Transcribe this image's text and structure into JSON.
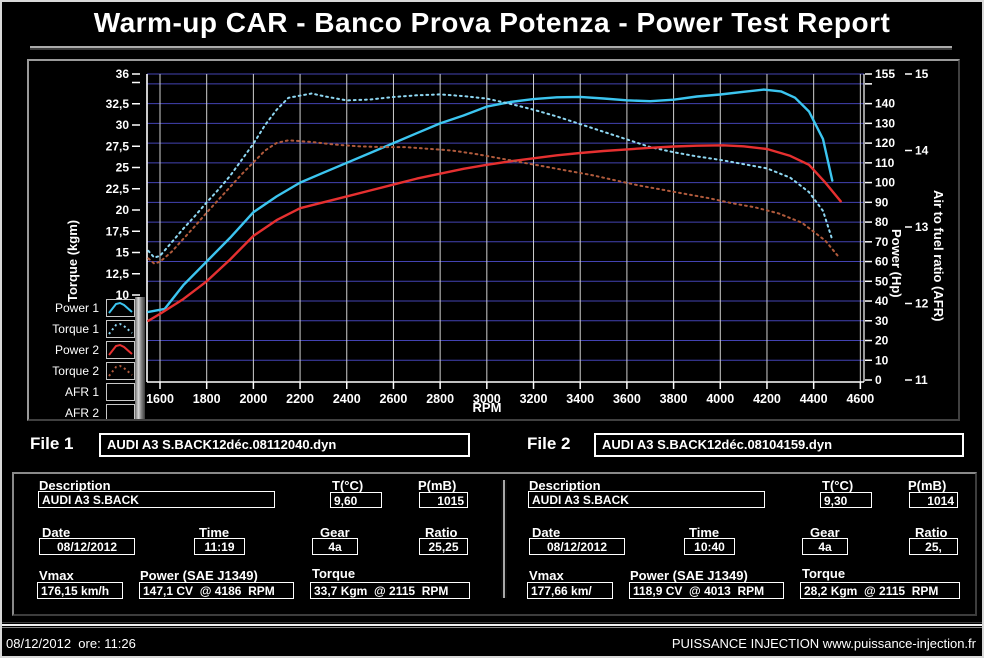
{
  "window": {
    "title": "Warm-up CAR  - Banco Prova Potenza -  Power Test Report"
  },
  "colors": {
    "background": "#000000",
    "grid_horizontal": "#4343b2",
    "grid_vertical": "#cfcfcf",
    "axis": "#ffffff",
    "power1": "#3cc5f0",
    "torque1": "#8ed7f2",
    "power2": "#e63030",
    "torque2": "#b05a3c"
  },
  "chart_data": {
    "type": "line",
    "title": "",
    "xlabel": "RPM",
    "x_range": [
      1540,
      4610
    ],
    "x_ticks": [
      1600,
      1800,
      2000,
      2200,
      2400,
      2600,
      2800,
      3000,
      3200,
      3400,
      3600,
      3800,
      4000,
      4200,
      4400,
      4600
    ],
    "grid": true,
    "legend_position": "bottom-left",
    "axes": {
      "torque": {
        "label": "Torque (kgm)",
        "side": "left",
        "range": [
          10,
          36
        ],
        "ticks": [
          {
            "v": 36,
            "label": "36"
          },
          {
            "v": 35,
            "label": ""
          },
          {
            "v": 32.5,
            "label": "32,5"
          },
          {
            "v": 30,
            "label": "30"
          },
          {
            "v": 27.5,
            "label": "27,5"
          },
          {
            "v": 25,
            "label": "25"
          },
          {
            "v": 22.5,
            "label": "22,5"
          },
          {
            "v": 20,
            "label": "20"
          },
          {
            "v": 17.5,
            "label": "17,5"
          },
          {
            "v": 15,
            "label": "15"
          },
          {
            "v": 12.5,
            "label": "12,5"
          },
          {
            "v": 10,
            "label": "10"
          }
        ]
      },
      "power": {
        "label": "Power (Hp)",
        "side": "right",
        "range": [
          0,
          155
        ],
        "ticks": [
          {
            "v": 155,
            "label": "155"
          },
          {
            "v": 150,
            "label": ""
          },
          {
            "v": 140,
            "label": "140"
          },
          {
            "v": 130,
            "label": "130"
          },
          {
            "v": 120,
            "label": "120"
          },
          {
            "v": 110,
            "label": "110"
          },
          {
            "v": 100,
            "label": "100"
          },
          {
            "v": 90,
            "label": "90"
          },
          {
            "v": 80,
            "label": "80"
          },
          {
            "v": 70,
            "label": "70"
          },
          {
            "v": 60,
            "label": "60"
          },
          {
            "v": 50,
            "label": "50"
          },
          {
            "v": 40,
            "label": "40"
          },
          {
            "v": 30,
            "label": "30"
          },
          {
            "v": 20,
            "label": "20"
          },
          {
            "v": 10,
            "label": "10"
          },
          {
            "v": 0,
            "label": "0"
          }
        ]
      },
      "afr": {
        "label": "Air to fuel ratio (AFR)",
        "side": "right-outer",
        "range": [
          11,
          15
        ],
        "ticks": [
          {
            "v": 15,
            "label": "15"
          },
          {
            "v": 14,
            "label": "14"
          },
          {
            "v": 13,
            "label": "13"
          },
          {
            "v": 12,
            "label": "12"
          },
          {
            "v": 11,
            "label": "11"
          }
        ]
      }
    },
    "series": [
      {
        "name": "Power 1",
        "axis": "power",
        "style": "solid",
        "color": "#3cc5f0",
        "points": [
          [
            1550,
            34.5
          ],
          [
            1620,
            36
          ],
          [
            1700,
            48
          ],
          [
            1800,
            60
          ],
          [
            1900,
            72
          ],
          [
            2000,
            85
          ],
          [
            2100,
            93
          ],
          [
            2200,
            100
          ],
          [
            2300,
            105
          ],
          [
            2400,
            110
          ],
          [
            2500,
            115
          ],
          [
            2600,
            120
          ],
          [
            2700,
            125
          ],
          [
            2800,
            130
          ],
          [
            2900,
            134
          ],
          [
            3000,
            138.5
          ],
          [
            3100,
            140.8
          ],
          [
            3200,
            142.3
          ],
          [
            3300,
            143.2
          ],
          [
            3400,
            143.4
          ],
          [
            3500,
            142.6
          ],
          [
            3600,
            141.7
          ],
          [
            3700,
            141.2
          ],
          [
            3800,
            142
          ],
          [
            3900,
            143.6
          ],
          [
            4000,
            144.6
          ],
          [
            4100,
            146
          ],
          [
            4186,
            147.1
          ],
          [
            4260,
            146.2
          ],
          [
            4320,
            143
          ],
          [
            4380,
            136
          ],
          [
            4440,
            122
          ],
          [
            4480,
            101
          ]
        ]
      },
      {
        "name": "Torque 1",
        "axis": "torque",
        "style": "dotted",
        "color": "#8ed7f2",
        "points": [
          [
            1550,
            15.2
          ],
          [
            1575,
            14.4
          ],
          [
            1600,
            14.6
          ],
          [
            1650,
            16.2
          ],
          [
            1700,
            17.8
          ],
          [
            1750,
            19.3
          ],
          [
            1800,
            20.9
          ],
          [
            1850,
            22.4
          ],
          [
            1900,
            24
          ],
          [
            1950,
            25.9
          ],
          [
            2000,
            27.8
          ],
          [
            2050,
            30
          ],
          [
            2100,
            31.8
          ],
          [
            2150,
            33.2
          ],
          [
            2250,
            33.7
          ],
          [
            2300,
            33.4
          ],
          [
            2400,
            32.9
          ],
          [
            2500,
            33
          ],
          [
            2600,
            33.3
          ],
          [
            2700,
            33.5
          ],
          [
            2800,
            33.6
          ],
          [
            2900,
            33.4
          ],
          [
            3000,
            33.1
          ],
          [
            3100,
            32.5
          ],
          [
            3200,
            31.8
          ],
          [
            3300,
            31
          ],
          [
            3400,
            30.1
          ],
          [
            3500,
            29.2
          ],
          [
            3600,
            28.3
          ],
          [
            3700,
            27.4
          ],
          [
            3800,
            26.8
          ],
          [
            3900,
            26.3
          ],
          [
            4000,
            25.9
          ],
          [
            4100,
            25.4
          ],
          [
            4200,
            24.9
          ],
          [
            4300,
            23.8
          ],
          [
            4380,
            22.1
          ],
          [
            4440,
            19.9
          ],
          [
            4480,
            16.5
          ]
        ]
      },
      {
        "name": "Power 2",
        "axis": "power",
        "style": "solid",
        "color": "#e63030",
        "points": [
          [
            1550,
            30
          ],
          [
            1600,
            33.5
          ],
          [
            1700,
            41
          ],
          [
            1800,
            50
          ],
          [
            1900,
            61
          ],
          [
            2000,
            73
          ],
          [
            2100,
            81
          ],
          [
            2200,
            87
          ],
          [
            2300,
            90
          ],
          [
            2400,
            93
          ],
          [
            2500,
            96
          ],
          [
            2600,
            99
          ],
          [
            2700,
            102
          ],
          [
            2800,
            104.5
          ],
          [
            2900,
            107
          ],
          [
            3000,
            109
          ],
          [
            3100,
            110.8
          ],
          [
            3200,
            112.3
          ],
          [
            3300,
            113.8
          ],
          [
            3400,
            115
          ],
          [
            3500,
            116
          ],
          [
            3600,
            116.8
          ],
          [
            3700,
            117.6
          ],
          [
            3800,
            118.3
          ],
          [
            3900,
            118.7
          ],
          [
            4013,
            118.9
          ],
          [
            4100,
            118.4
          ],
          [
            4200,
            117
          ],
          [
            4300,
            113.5
          ],
          [
            4380,
            109
          ],
          [
            4450,
            100
          ],
          [
            4516,
            90.5
          ]
        ]
      },
      {
        "name": "Torque 2",
        "axis": "torque",
        "style": "dotted",
        "color": "#b05a3c",
        "points": [
          [
            1550,
            14.3
          ],
          [
            1575,
            13.7
          ],
          [
            1600,
            13.9
          ],
          [
            1650,
            15.1
          ],
          [
            1700,
            16.6
          ],
          [
            1750,
            18.1
          ],
          [
            1800,
            19.7
          ],
          [
            1850,
            21.2
          ],
          [
            1900,
            22.7
          ],
          [
            1950,
            24.2
          ],
          [
            2000,
            25.6
          ],
          [
            2050,
            27
          ],
          [
            2100,
            27.9
          ],
          [
            2150,
            28.2
          ],
          [
            2250,
            28
          ],
          [
            2350,
            27.7
          ],
          [
            2450,
            27.5
          ],
          [
            2550,
            27.4
          ],
          [
            2650,
            27.4
          ],
          [
            2750,
            27.2
          ],
          [
            2850,
            27
          ],
          [
            2950,
            26.6
          ],
          [
            3050,
            26.1
          ],
          [
            3150,
            25.6
          ],
          [
            3250,
            25.1
          ],
          [
            3350,
            24.6
          ],
          [
            3450,
            24.1
          ],
          [
            3550,
            23.5
          ],
          [
            3650,
            22.9
          ],
          [
            3750,
            22.4
          ],
          [
            3850,
            21.9
          ],
          [
            3950,
            21.4
          ],
          [
            4050,
            20.8
          ],
          [
            4150,
            20.3
          ],
          [
            4250,
            19.6
          ],
          [
            4350,
            18.5
          ],
          [
            4450,
            16.4
          ],
          [
            4510,
            14.4
          ]
        ]
      },
      {
        "name": "AFR 1",
        "axis": "afr",
        "style": "dotted",
        "color": "#ffffff",
        "points": []
      },
      {
        "name": "AFR 2",
        "axis": "afr",
        "style": "solid",
        "color": "#ffffff",
        "points": []
      }
    ]
  },
  "files": {
    "file1_label": "File 1",
    "file1_name": "AUDI A3 S.BACK12déc.08112040.dyn",
    "file2_label": "File 2",
    "file2_name": "AUDI A3 S.BACK12déc.08104159.dyn"
  },
  "field_labels": {
    "description": "Description",
    "temperature": "T(°C)",
    "pressure": "P(mB)",
    "date": "Date",
    "time": "Time",
    "gear": "Gear",
    "ratio": "Ratio",
    "vmax": "Vmax",
    "power": "Power (SAE J1349)",
    "torque": "Torque"
  },
  "file1": {
    "description": "AUDI A3 S.BACK",
    "temperature": "9,60",
    "pressure": "1015",
    "date": "08/12/2012",
    "time": "11:19",
    "gear": "4a",
    "ratio": "25,25",
    "vmax": "176,15 km/h",
    "power": "147,1 CV  @ 4186  RPM",
    "torque": "33,7 Kgm  @ 2115  RPM"
  },
  "file2": {
    "description": "AUDI A3 S.BACK",
    "temperature": "9,30",
    "pressure": "1014",
    "date": "08/12/2012",
    "time": "10:40",
    "gear": "4a",
    "ratio": "25,",
    "vmax": "177,66 km/",
    "power": "118,9 CV  @ 4013  RPM",
    "torque": "28,2 Kgm  @ 2115  RPM"
  },
  "footer": {
    "left": "08/12/2012  ore: 11:26",
    "right": "PUISSANCE INJECTION www.puissance-injection.fr"
  }
}
